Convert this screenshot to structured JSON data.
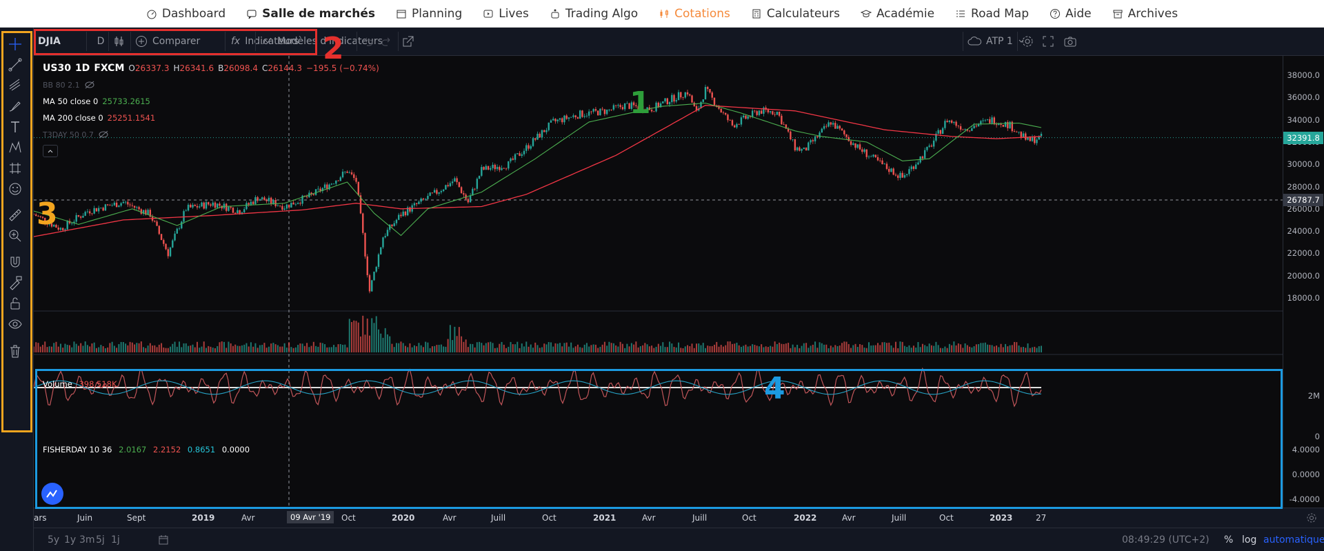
{
  "nav": {
    "items": [
      {
        "label": "Dashboard",
        "icon": "dashboard-icon"
      },
      {
        "label": "Salle de marchés",
        "icon": "chat-icon",
        "bold": true
      },
      {
        "label": "Planning",
        "icon": "calendar-icon"
      },
      {
        "label": "Lives",
        "icon": "play-icon"
      },
      {
        "label": "Trading Algo",
        "icon": "robot-icon"
      },
      {
        "label": "Cotations",
        "icon": "candles-icon",
        "active": true
      },
      {
        "label": "Calculateurs",
        "icon": "calculator-icon"
      },
      {
        "label": "Académie",
        "icon": "graduation-cap-icon"
      },
      {
        "label": "Road Map",
        "icon": "list-icon"
      },
      {
        "label": "Aide",
        "icon": "help-icon"
      },
      {
        "label": "Archives",
        "icon": "archive-icon"
      }
    ],
    "active_color": "#f58a3b"
  },
  "toolbar": {
    "symbol": "DJIA",
    "interval": "D",
    "compare": "Comparer",
    "indicators": "Indicateurs",
    "templates": "Modèles d'indicateurs",
    "account": "ATP 1"
  },
  "legend": {
    "symbol": "US30",
    "interval": "1D",
    "source": "FXCM",
    "o_label": "O",
    "o": "26337.3",
    "h_label": "H",
    "h": "26341.6",
    "b_label": "B",
    "b": "26098.4",
    "c_label": "C",
    "c": "26144.3",
    "change": "−195.5 (−0.74%)",
    "bb": "BB 80 2.1",
    "ma50_label": "MA 50 close 0",
    "ma50": "25733.2615",
    "ma200_label": "MA 200 close 0",
    "ma200": "25251.1541",
    "t3": "T3DAY 50 0.7"
  },
  "volume": {
    "label": "Volume",
    "value": "398.518K"
  },
  "fisher": {
    "label": "FISHERDAY 10 36",
    "v1": "2.0167",
    "v2": "2.2152",
    "v3": "0.8651",
    "v4": "0.0000"
  },
  "price_axis": [
    "38000.0",
    "36000.0",
    "34000.0",
    "32000.0",
    "30000.0",
    "28000.0",
    "26000.0",
    "24000.0",
    "22000.0",
    "20000.0",
    "18000.0"
  ],
  "current_price": "32391.8",
  "crosshair_price": "26787.7",
  "volume_axis": [
    "2M",
    "0"
  ],
  "fisher_axis": [
    "4.0000",
    "0.0000",
    "-4.0000"
  ],
  "time_axis": [
    "ars",
    "Juin",
    "Sept",
    "2019",
    "Avr",
    "Juill",
    "Oct",
    "2020",
    "Avr",
    "Juill",
    "Oct",
    "2021",
    "Avr",
    "Juill",
    "Oct",
    "2022",
    "Avr",
    "Juill",
    "Oct",
    "2023",
    "27"
  ],
  "crosshair_date": "09 Avr '19",
  "bottom": {
    "ranges": [
      "5y",
      "1y",
      "3m",
      "5j",
      "1j"
    ],
    "time": "08:49:29 (UTC+2)",
    "percent": "%",
    "log": "log",
    "auto": "automatique"
  },
  "annotations": [
    "1",
    "2",
    "3",
    "4"
  ],
  "colors": {
    "up": "#26a69a",
    "down": "#ef5350",
    "ma50": "#4caf50",
    "ma200": "#f23645",
    "box1": "#2e9e3a",
    "box2": "#e5302d",
    "box3": "#f2a51f",
    "box4": "#1c9ae0"
  },
  "chart_data": {
    "type": "candlestick",
    "x_start": "2018-03",
    "x_end": "2023-02-27",
    "ylim": [
      17000,
      39000
    ],
    "price_path": [
      [
        0,
        25500
      ],
      [
        6,
        24200
      ],
      [
        12,
        25800
      ],
      [
        20,
        26600
      ],
      [
        26,
        25500
      ],
      [
        30,
        22000
      ],
      [
        34,
        26000
      ],
      [
        40,
        26500
      ],
      [
        46,
        25800
      ],
      [
        50,
        27000
      ],
      [
        56,
        26200
      ],
      [
        62,
        27200
      ],
      [
        66,
        28200
      ],
      [
        70,
        29400
      ],
      [
        72,
        28500
      ],
      [
        74,
        22000
      ],
      [
        75,
        18600
      ],
      [
        78,
        23500
      ],
      [
        82,
        25500
      ],
      [
        86,
        26500
      ],
      [
        90,
        27500
      ],
      [
        94,
        28600
      ],
      [
        97,
        26600
      ],
      [
        100,
        29500
      ],
      [
        106,
        30000
      ],
      [
        110,
        31500
      ],
      [
        116,
        33800
      ],
      [
        122,
        34500
      ],
      [
        128,
        34800
      ],
      [
        132,
        35300
      ],
      [
        138,
        35000
      ],
      [
        142,
        35800
      ],
      [
        146,
        36500
      ],
      [
        148,
        34600
      ],
      [
        150,
        36700
      ],
      [
        154,
        34500
      ],
      [
        156,
        33500
      ],
      [
        162,
        34800
      ],
      [
        166,
        34700
      ],
      [
        170,
        31500
      ],
      [
        172,
        31200
      ],
      [
        178,
        33800
      ],
      [
        184,
        31500
      ],
      [
        190,
        29800
      ],
      [
        194,
        28800
      ],
      [
        200,
        31500
      ],
      [
        204,
        34000
      ],
      [
        208,
        33200
      ],
      [
        214,
        34000
      ],
      [
        218,
        33500
      ],
      [
        222,
        32100
      ],
      [
        225,
        32400
      ]
    ],
    "ma50_path": [
      [
        0,
        25800
      ],
      [
        10,
        24600
      ],
      [
        22,
        26000
      ],
      [
        32,
        24500
      ],
      [
        42,
        26200
      ],
      [
        56,
        26500
      ],
      [
        70,
        28400
      ],
      [
        76,
        25600
      ],
      [
        82,
        23600
      ],
      [
        88,
        26000
      ],
      [
        100,
        27500
      ],
      [
        112,
        30500
      ],
      [
        124,
        33800
      ],
      [
        140,
        35200
      ],
      [
        150,
        35500
      ],
      [
        158,
        34600
      ],
      [
        170,
        33000
      ],
      [
        176,
        32500
      ],
      [
        186,
        32000
      ],
      [
        194,
        30300
      ],
      [
        200,
        30500
      ],
      [
        210,
        33600
      ],
      [
        220,
        33700
      ],
      [
        225,
        33300
      ]
    ],
    "ma200_path": [
      [
        0,
        23500
      ],
      [
        20,
        25000
      ],
      [
        40,
        25400
      ],
      [
        60,
        25900
      ],
      [
        72,
        26500
      ],
      [
        82,
        26000
      ],
      [
        100,
        26200
      ],
      [
        110,
        27300
      ],
      [
        130,
        30800
      ],
      [
        150,
        35300
      ],
      [
        170,
        34800
      ],
      [
        190,
        33100
      ],
      [
        205,
        32500
      ],
      [
        215,
        32300
      ],
      [
        225,
        32500
      ]
    ]
  }
}
